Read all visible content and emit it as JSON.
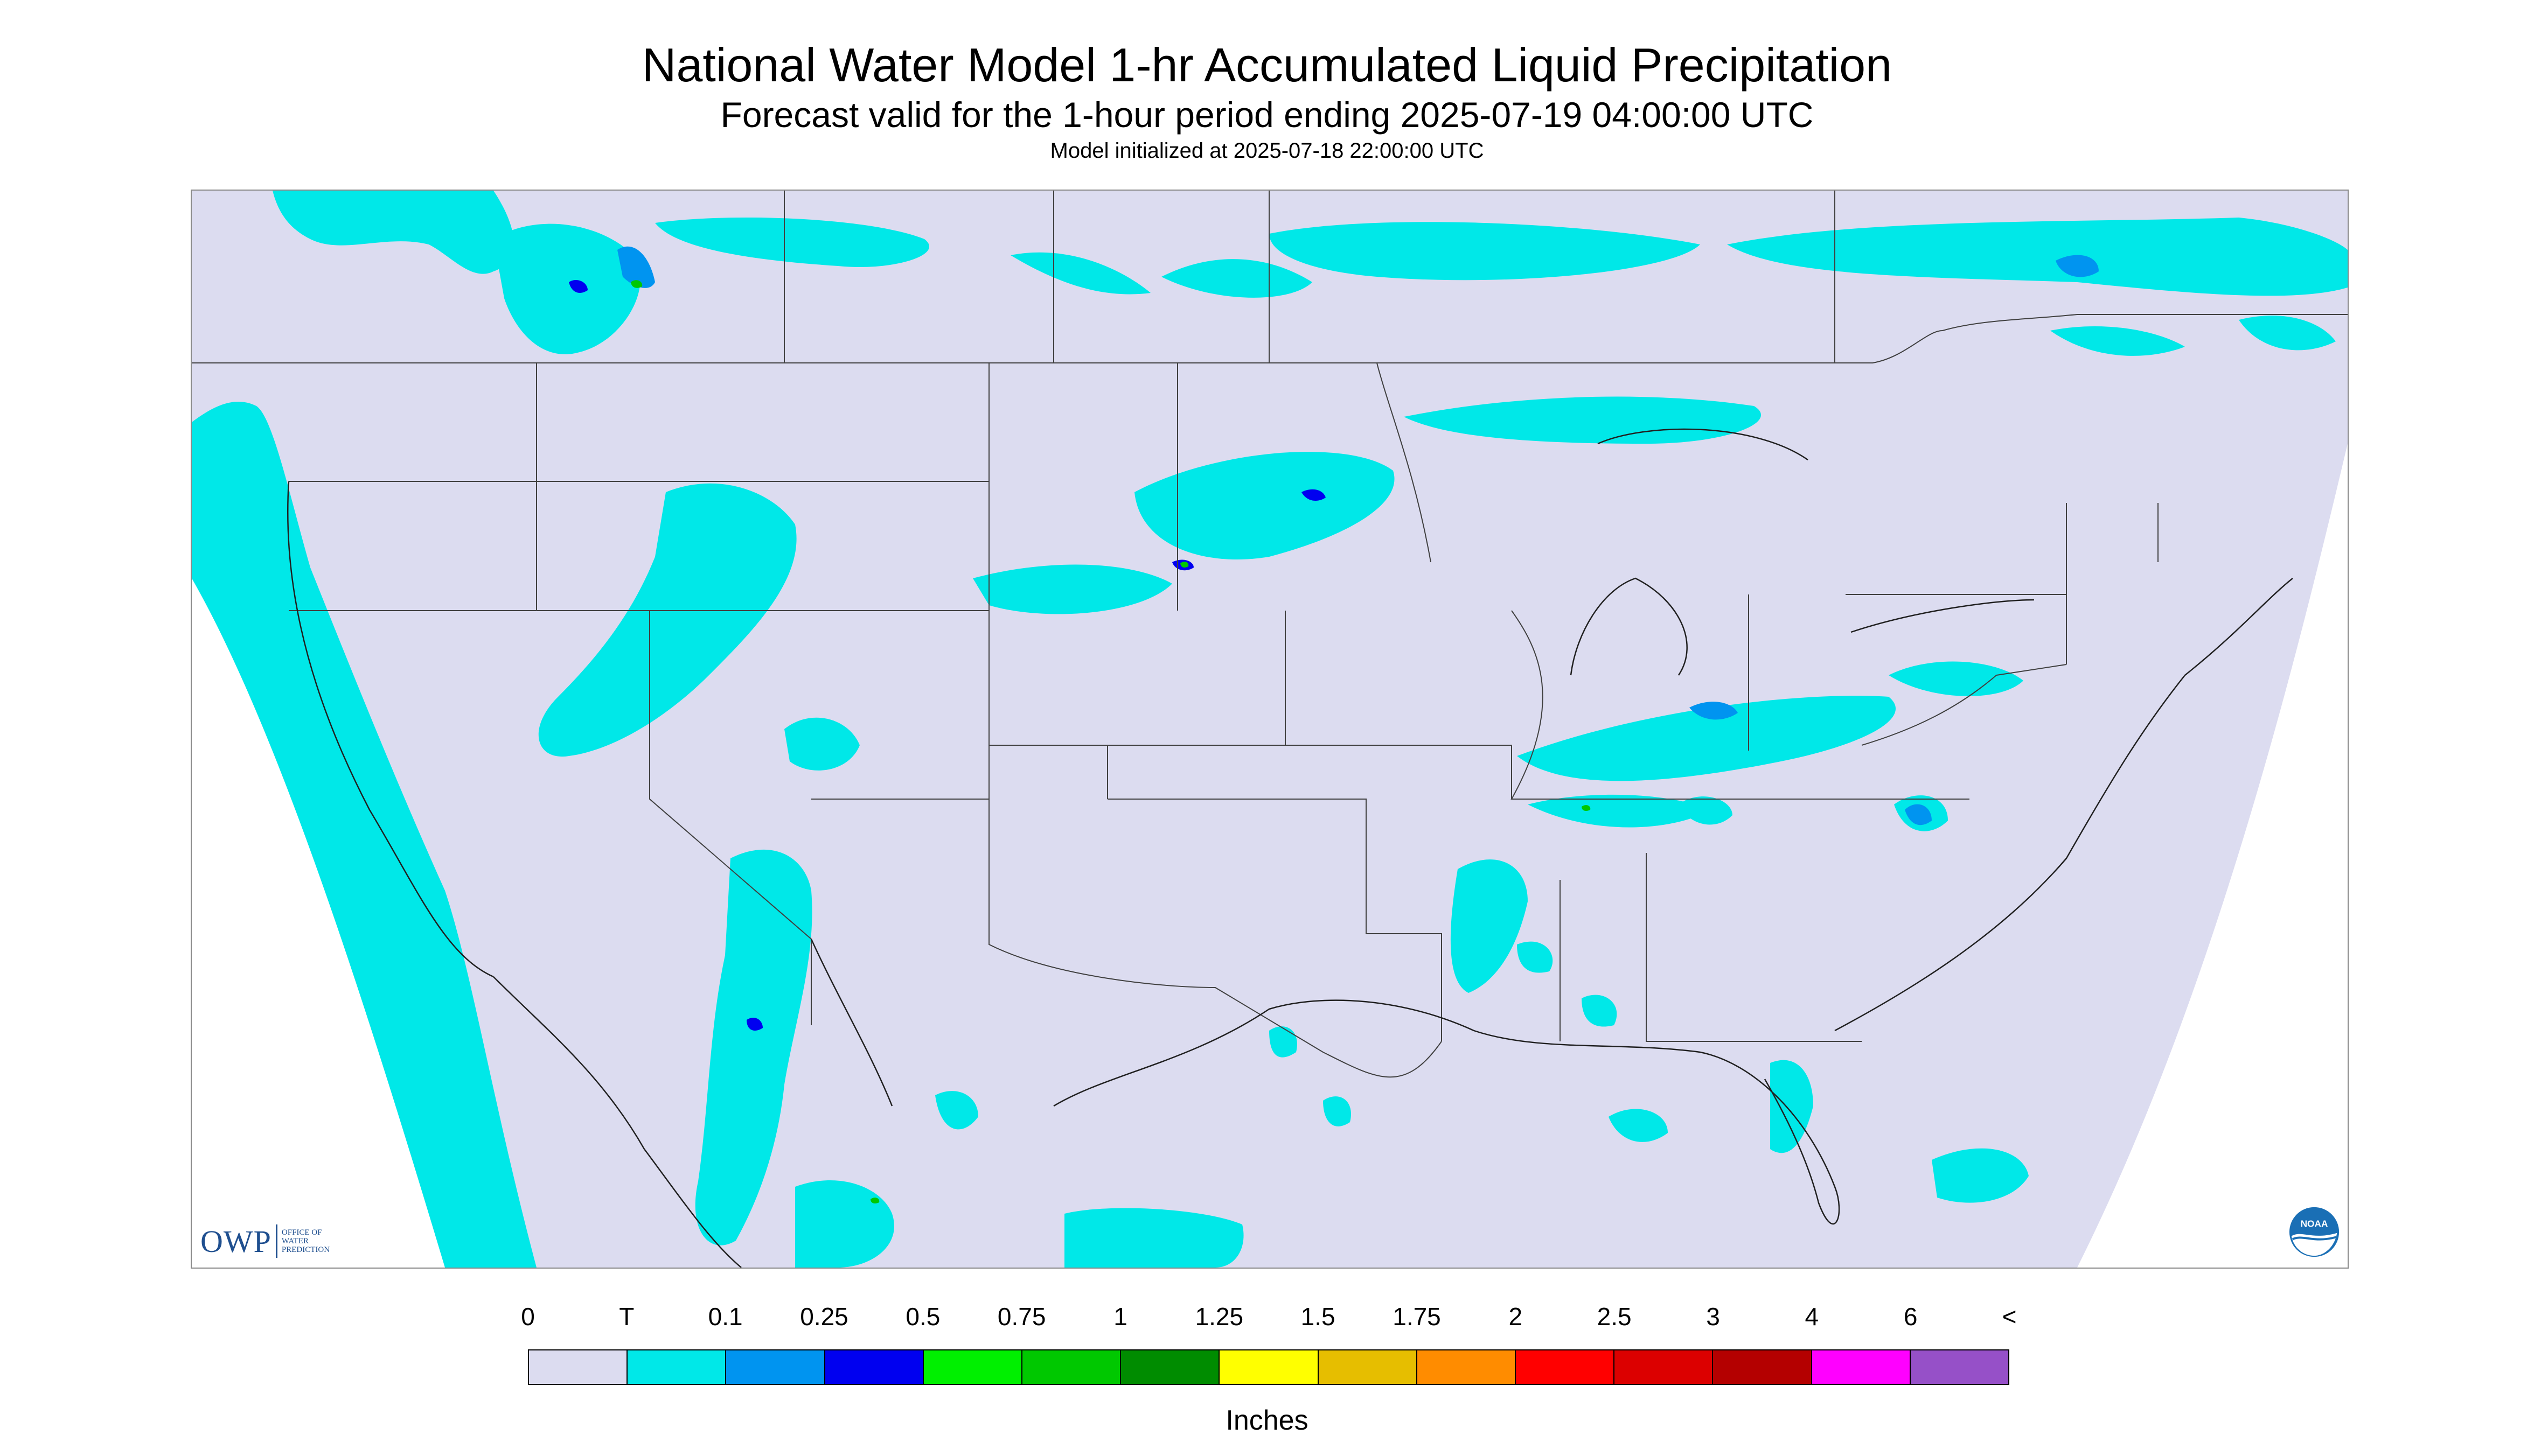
{
  "header": {
    "title": "National Water Model 1-hr Accumulated Liquid Precipitation",
    "subtitle": "Forecast valid for the 1-hour period ending 2025-07-19 04:00:00 UTC",
    "init_line": "Model initialized at 2025-07-18 22:00:00 UTC"
  },
  "legend": {
    "labels": [
      "0",
      "T",
      "0.1",
      "0.25",
      "0.5",
      "0.75",
      "1",
      "1.25",
      "1.5",
      "1.75",
      "2",
      "2.5",
      "3",
      "4",
      "6",
      "<"
    ],
    "colors": [
      "#dcdcf0",
      "#00e8e8",
      "#0094f0",
      "#0000f0",
      "#00f000",
      "#00c800",
      "#008c00",
      "#ffff00",
      "#e6be00",
      "#ff8c00",
      "#ff0000",
      "#dc0000",
      "#b40000",
      "#ff00ff",
      "#9650c8"
    ],
    "units": "Inches"
  },
  "logos": {
    "owp": {
      "mark": "OWP",
      "lines": [
        "OFFICE OF",
        "WATER",
        "PREDICTION"
      ]
    },
    "noaa": {
      "text": "NOAA",
      "icon": "noaa-logo"
    }
  },
  "map": {
    "colors": {
      "land_domain": "#dcdcf0",
      "outside_domain": "#ffffff",
      "trace": "#00e8e8",
      "light": "#0094f0",
      "moderate": "#0000f0",
      "heavy": "#00c800",
      "boundary": "#404040"
    }
  }
}
